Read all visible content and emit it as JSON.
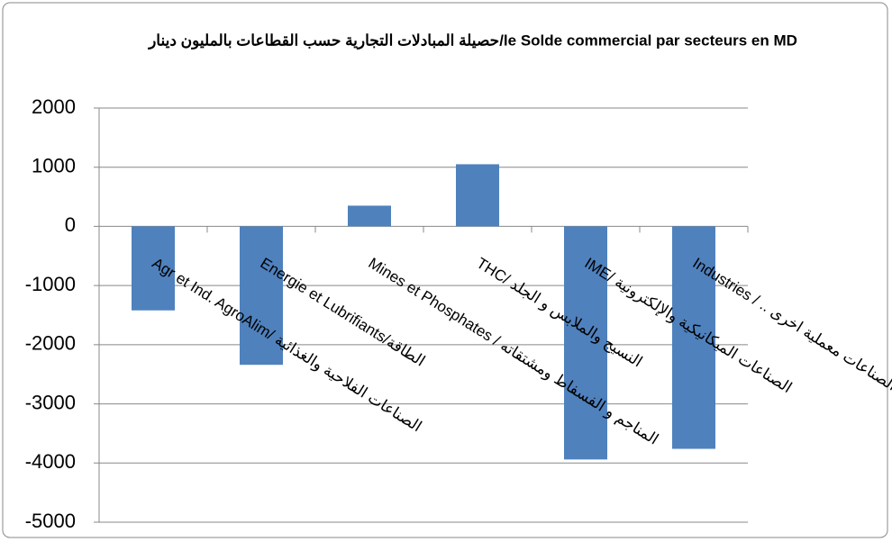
{
  "chart_data": {
    "type": "bar",
    "title": "حصيلة المبادلات التجارية حسب القطاعات بالمليون دينار/le Solde commercial par secteurs en MD",
    "categories": [
      "Agr et Ind. AgroAlim/ الصناعات الفلاحية والغذائية",
      "Energie et Lubrifiants/الطاقة",
      "Mines et Phosphates / المناجم و الفسفاط ومشتقاته",
      "THC/ النسيج والملابس و الجلد",
      "IME/ الصناعات الميكانيكية والإلكترونية",
      "Industries / .. الصناعات معملية اخرى"
    ],
    "values": [
      -1420,
      -2340,
      350,
      1050,
      -3940,
      -3760
    ],
    "color": "#4f81bd",
    "ylim": [
      -5000,
      2000
    ],
    "yticks": [
      -5000,
      -4000,
      -3000,
      -2000,
      -1000,
      0,
      1000,
      2000
    ],
    "grid": true
  }
}
